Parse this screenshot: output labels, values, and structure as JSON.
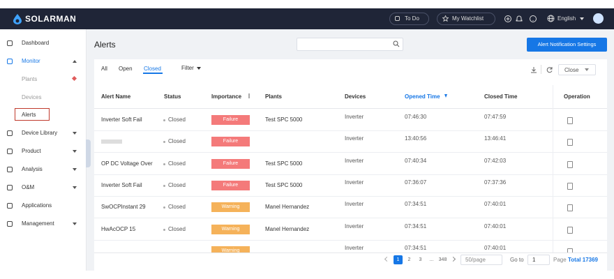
{
  "header": {
    "logo": "SOLARMAN",
    "todo": "To Do",
    "watchlist": "My Watchlist",
    "language": "English"
  },
  "sidebar": {
    "items": [
      "Dashboard",
      "Monitor",
      "Device Library",
      "Product",
      "Analysis",
      "O&M",
      "Applications",
      "Management"
    ],
    "monitor_children": [
      "Plants",
      "Devices",
      "Alerts"
    ]
  },
  "page": {
    "title": "Alerts",
    "button": "Alert Notification Settings"
  },
  "tabs": [
    "All",
    "Open",
    "Closed"
  ],
  "filter": "Filter",
  "close_select": "Close",
  "table": {
    "columns": [
      "Alert Name",
      "Status",
      "Importance",
      "Plants",
      "Devices",
      "Opened Time",
      "Closed Time",
      "Operation"
    ],
    "rows": [
      [
        "Inverter Soft Fail",
        "Closed",
        "Failure",
        "Test SPC 5000",
        "Inverter",
        "07:46:30",
        "07:47:59"
      ],
      [
        null,
        "Closed",
        "Failure",
        null,
        "Inverter",
        "13:40:56",
        "13:46:41"
      ],
      [
        "OP DC Voltage Over",
        "Closed",
        "Failure",
        "Test SPC 5000",
        "Inverter",
        "07:40:34",
        "07:42:03"
      ],
      [
        "Inverter Soft Fail",
        "Closed",
        "Failure",
        "Test SPC 5000",
        "Inverter",
        "07:36:07",
        "07:37:36"
      ],
      [
        "SwOCPInstant 29",
        "Closed",
        "Warning",
        "Manel Hernandez",
        "Inverter",
        "07:34:51",
        "07:40:01"
      ],
      [
        "HwAcOCP 15",
        "Closed",
        "Warning",
        "Manel Hernandez",
        "Inverter",
        "07:34:51",
        "07:40:01"
      ],
      [
        null,
        null,
        "Warning",
        null,
        "Inverter",
        "07:34:51",
        "07:40:01"
      ]
    ]
  },
  "pagination": {
    "pages": [
      "1",
      "2",
      "3",
      "...",
      "348"
    ],
    "page_size": "50/page",
    "goto_label": "Go to",
    "goto_value": "1",
    "page_label": "Page",
    "total": "Total 17369"
  }
}
